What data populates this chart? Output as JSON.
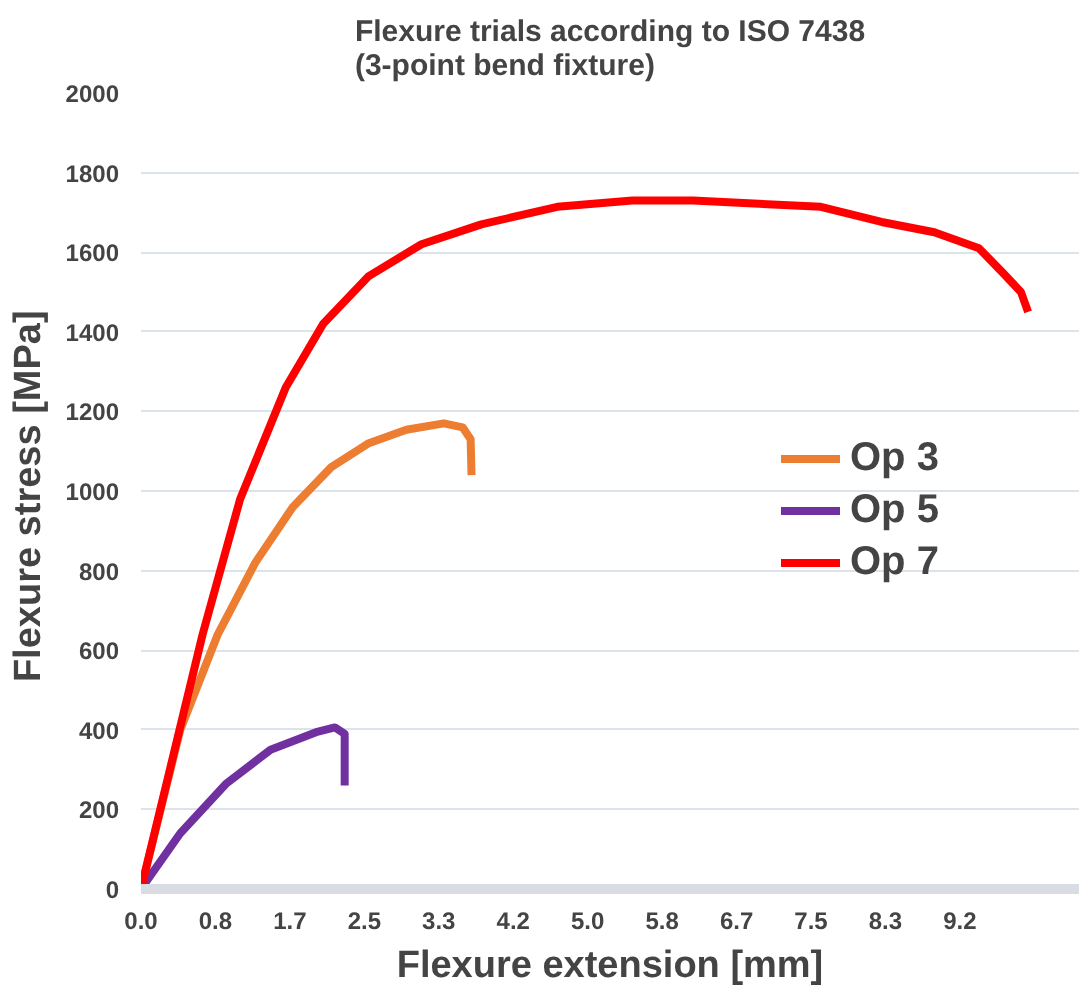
{
  "chart_data": {
    "type": "line",
    "title": "Flexure trials according to ISO 7438\n(3-point bend fixture)",
    "xlabel": "Flexure extension [mm]",
    "ylabel": "Flexure stress  [MPa]",
    "xlim": [
      0,
      10.5
    ],
    "ylim": [
      0,
      2000
    ],
    "xticks": [
      {
        "value": 0,
        "label": "0.0"
      },
      {
        "value": 0.833,
        "label": "0.8"
      },
      {
        "value": 1.667,
        "label": "1.7"
      },
      {
        "value": 2.5,
        "label": "2.5"
      },
      {
        "value": 3.333,
        "label": "3.3"
      },
      {
        "value": 4.167,
        "label": "4.2"
      },
      {
        "value": 5.0,
        "label": "5.0"
      },
      {
        "value": 5.833,
        "label": "5.8"
      },
      {
        "value": 6.667,
        "label": "6.7"
      },
      {
        "value": 7.5,
        "label": "7.5"
      },
      {
        "value": 8.333,
        "label": "8.3"
      },
      {
        "value": 9.167,
        "label": "9.2"
      }
    ],
    "yticks": [
      0,
      200,
      400,
      600,
      800,
      1000,
      1200,
      1400,
      1600,
      1800,
      2000
    ],
    "grid": "y",
    "legend": "right",
    "marker": "none",
    "line_style": "solid",
    "series": [
      {
        "name": "Op 3",
        "color": "#ed7d31",
        "x": [
          0,
          0.44,
          0.86,
          1.28,
          1.7,
          2.13,
          2.55,
          2.97,
          3.39,
          3.6,
          3.69,
          3.7
        ],
        "values": [
          0,
          400,
          640,
          820,
          960,
          1060,
          1120,
          1154,
          1170,
          1160,
          1130,
          1040
        ]
      },
      {
        "name": "Op 5",
        "color": "#7030a0",
        "x": [
          0,
          0.44,
          0.95,
          1.45,
          1.96,
          2.17,
          2.28,
          2.28
        ],
        "values": [
          0,
          140,
          264,
          350,
          394,
          406,
          390,
          260
        ]
      },
      {
        "name": "Op 7",
        "color": "#ff0000",
        "x": [
          0,
          0.69,
          1.11,
          1.62,
          2.04,
          2.55,
          3.14,
          3.81,
          4.66,
          5.5,
          6.18,
          7.61,
          8.29,
          8.88,
          9.38,
          9.64,
          9.85,
          9.93
        ],
        "values": [
          0,
          640,
          980,
          1260,
          1420,
          1540,
          1620,
          1670,
          1714,
          1730,
          1730,
          1714,
          1676,
          1650,
          1610,
          1550,
          1500,
          1450
        ]
      }
    ]
  }
}
